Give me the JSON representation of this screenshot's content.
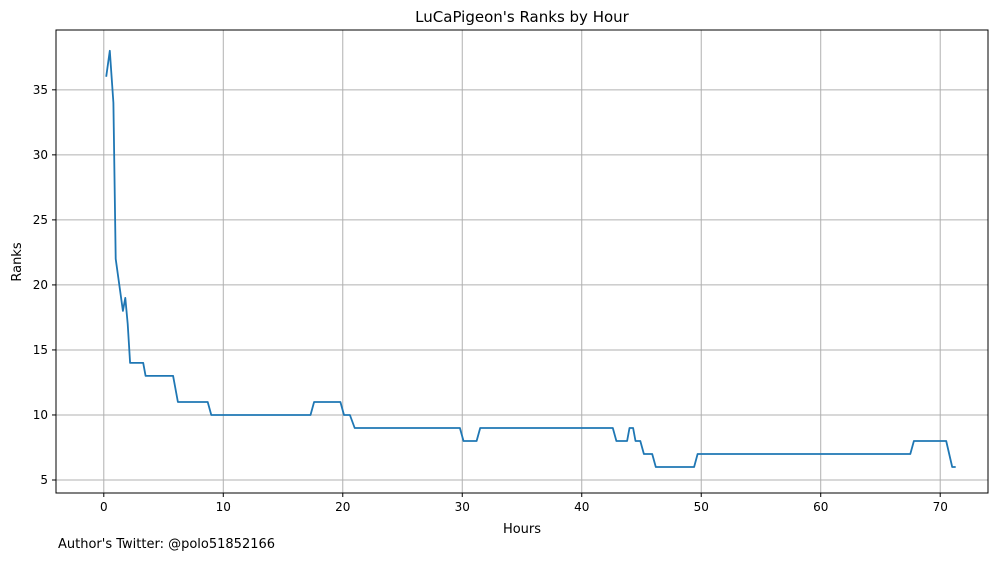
{
  "chart_data": {
    "type": "line",
    "title": "LuCaPigeon's Ranks by Hour",
    "xlabel": "Hours",
    "ylabel": "Ranks",
    "xlim": [
      -4,
      74
    ],
    "ylim": [
      4,
      39.6
    ],
    "xticks": [
      0,
      10,
      20,
      30,
      40,
      50,
      60,
      70
    ],
    "yticks": [
      5,
      10,
      15,
      20,
      25,
      30,
      35
    ],
    "xtick_labels": [
      "0",
      "10",
      "20",
      "30",
      "40",
      "50",
      "60",
      "70"
    ],
    "ytick_labels": [
      "5",
      "10",
      "15",
      "20",
      "25",
      "30",
      "35"
    ],
    "grid": true,
    "line_color": "#1f77b4",
    "grid_color": "#b0b0b0",
    "series": [
      {
        "x": [
          0.2,
          0.5,
          0.8,
          1.0,
          1.3,
          1.6,
          1.8,
          2.0,
          2.2,
          3.3,
          3.5,
          5.8,
          6.2,
          8.7,
          9.0,
          17.3,
          17.6,
          19.8,
          20.1,
          20.6,
          21.0,
          29.8,
          30.1,
          31.2,
          31.5,
          42.6,
          42.9,
          43.8,
          44.0,
          44.3,
          44.5,
          44.9,
          45.2,
          45.9,
          46.2,
          49.4,
          49.7,
          67.5,
          67.8,
          70.5,
          71.0,
          71.3
        ],
        "y": [
          36,
          38,
          34,
          22,
          20,
          18,
          19,
          17,
          14,
          14,
          13,
          13,
          11,
          11,
          10,
          10,
          11,
          11,
          10,
          10,
          9,
          9,
          8,
          8,
          9,
          9,
          8,
          8,
          9,
          9,
          8,
          8,
          7,
          7,
          6,
          6,
          7,
          7,
          8,
          8,
          6,
          6
        ]
      }
    ]
  },
  "footer": {
    "author_note": "Author's Twitter: @polo51852166"
  }
}
